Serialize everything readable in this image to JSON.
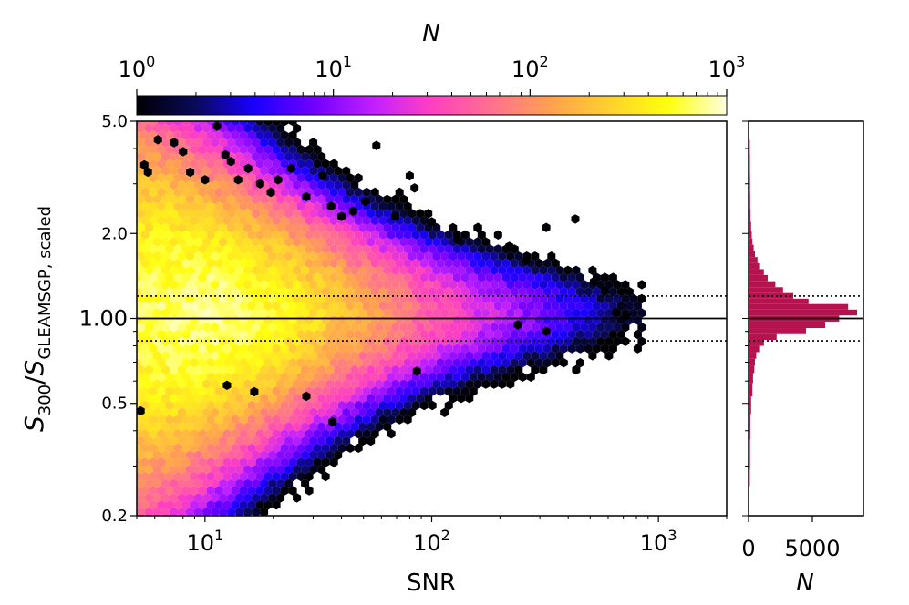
{
  "colorbar": {
    "label": "N",
    "scale": "log",
    "range": [
      1,
      1000
    ],
    "ticks": [
      {
        "value": 1,
        "base": "10",
        "exp": "0"
      },
      {
        "value": 10,
        "base": "10",
        "exp": "1"
      },
      {
        "value": 100,
        "base": "10",
        "exp": "2"
      },
      {
        "value": 1000,
        "base": "10",
        "exp": "3"
      }
    ],
    "colormap": [
      "#000004",
      "#0a0a5a",
      "#1a00ff",
      "#7000ff",
      "#c020ff",
      "#ff40c0",
      "#ff7090",
      "#ffa050",
      "#ffd030",
      "#ffff10",
      "#ffffe0"
    ]
  },
  "chart_data": [
    {
      "type": "hexbin",
      "xlabel": "SNR",
      "ylabel": {
        "main": "S",
        "sub1": "300",
        "slash": "/",
        "main2": "S",
        "sub2": "GLEAMSGP, scaled"
      },
      "xscale": "log",
      "yscale": "log",
      "xlim": [
        5,
        2000
      ],
      "ylim": [
        0.2,
        5.0
      ],
      "xticks": [
        {
          "value": 10,
          "base": "10",
          "exp": "1"
        },
        {
          "value": 100,
          "base": "10",
          "exp": "2"
        },
        {
          "value": 1000,
          "base": "10",
          "exp": "3"
        }
      ],
      "yticks": [
        {
          "value": 0.2,
          "label": "0.2"
        },
        {
          "value": 0.5,
          "label": "0.5"
        },
        {
          "value": 1.0,
          "label": "1.00"
        },
        {
          "value": 2.0,
          "label": "2.0"
        },
        {
          "value": 5.0,
          "label": "5.0"
        }
      ],
      "reference_lines": [
        {
          "y": 1.0,
          "style": "solid"
        },
        {
          "y": 1.2,
          "style": "dotted"
        },
        {
          "y": 0.833,
          "style": "dotted"
        }
      ],
      "density_model": {
        "center": 1.05,
        "snr_peak": 9,
        "count_at_peak": 700
      },
      "outliers": [
        [
          5.2,
          0.47
        ],
        [
          5.4,
          3.5
        ],
        [
          5.6,
          3.3
        ],
        [
          6.2,
          4.3
        ],
        [
          7.3,
          4.2
        ],
        [
          8.0,
          3.9
        ],
        [
          8.6,
          3.3
        ],
        [
          11.3,
          4.8
        ],
        [
          10.0,
          3.1
        ],
        [
          12.3,
          3.8
        ],
        [
          13.0,
          3.6
        ],
        [
          14.0,
          3.1
        ],
        [
          15.5,
          3.4
        ],
        [
          17.5,
          3.0
        ],
        [
          19.5,
          2.8
        ],
        [
          21.0,
          3.1
        ],
        [
          24.0,
          3.4
        ],
        [
          28.0,
          2.7
        ],
        [
          33.0,
          3.2
        ],
        [
          36.0,
          2.5
        ],
        [
          40.0,
          2.3
        ],
        [
          45.0,
          2.4
        ],
        [
          51.0,
          2.6
        ],
        [
          57.0,
          4.1
        ],
        [
          69.0,
          2.3
        ],
        [
          80.0,
          3.2
        ],
        [
          84.0,
          2.9
        ],
        [
          100.0,
          2.2
        ],
        [
          130.0,
          1.9
        ],
        [
          160.0,
          2.1
        ],
        [
          220.0,
          1.8
        ],
        [
          260.0,
          1.6
        ],
        [
          320.0,
          2.1
        ],
        [
          430.0,
          2.25
        ],
        [
          520.0,
          1.35
        ],
        [
          580.0,
          1.25
        ],
        [
          650.0,
          1.05
        ],
        [
          720.0,
          1.02
        ],
        [
          12.5,
          0.58
        ],
        [
          16.5,
          0.55
        ],
        [
          28.0,
          0.53
        ],
        [
          36.5,
          0.43
        ],
        [
          86.0,
          0.65
        ],
        [
          320.0,
          0.9
        ],
        [
          240.0,
          0.95
        ]
      ]
    },
    {
      "type": "histogram",
      "orientation": "horizontal",
      "xlabel": "N",
      "xlim": [
        0,
        9000
      ],
      "xticks": [
        {
          "value": 0,
          "label": "0"
        },
        {
          "value": 5000,
          "label": "5000"
        }
      ],
      "ylim": [
        0.2,
        5.0
      ],
      "yscale": "log",
      "bars": [
        {
          "y": 0.26,
          "count": 100
        },
        {
          "y": 0.33,
          "count": 120
        },
        {
          "y": 0.42,
          "count": 140
        },
        {
          "y": 0.5,
          "count": 200
        },
        {
          "y": 0.56,
          "count": 300
        },
        {
          "y": 0.62,
          "count": 350
        },
        {
          "y": 0.66,
          "count": 450
        },
        {
          "y": 0.7,
          "count": 500
        },
        {
          "y": 0.74,
          "count": 600
        },
        {
          "y": 0.78,
          "count": 900
        },
        {
          "y": 0.82,
          "count": 1200
        },
        {
          "y": 0.86,
          "count": 2200
        },
        {
          "y": 0.9,
          "count": 4500
        },
        {
          "y": 0.95,
          "count": 6000
        },
        {
          "y": 1.0,
          "count": 7100
        },
        {
          "y": 1.05,
          "count": 8500
        },
        {
          "y": 1.1,
          "count": 7800
        },
        {
          "y": 1.15,
          "count": 4700
        },
        {
          "y": 1.2,
          "count": 3500
        },
        {
          "y": 1.26,
          "count": 2700
        },
        {
          "y": 1.32,
          "count": 2100
        },
        {
          "y": 1.39,
          "count": 1500
        },
        {
          "y": 1.46,
          "count": 1200
        },
        {
          "y": 1.53,
          "count": 900
        },
        {
          "y": 1.61,
          "count": 700
        },
        {
          "y": 1.69,
          "count": 500
        },
        {
          "y": 1.78,
          "count": 400
        },
        {
          "y": 1.87,
          "count": 300
        },
        {
          "y": 1.97,
          "count": 250
        },
        {
          "y": 2.1,
          "count": 200
        },
        {
          "y": 2.3,
          "count": 150
        },
        {
          "y": 2.6,
          "count": 130
        },
        {
          "y": 3.0,
          "count": 120
        },
        {
          "y": 3.5,
          "count": 110
        },
        {
          "y": 4.2,
          "count": 100
        }
      ],
      "color": "#b5134f"
    }
  ]
}
